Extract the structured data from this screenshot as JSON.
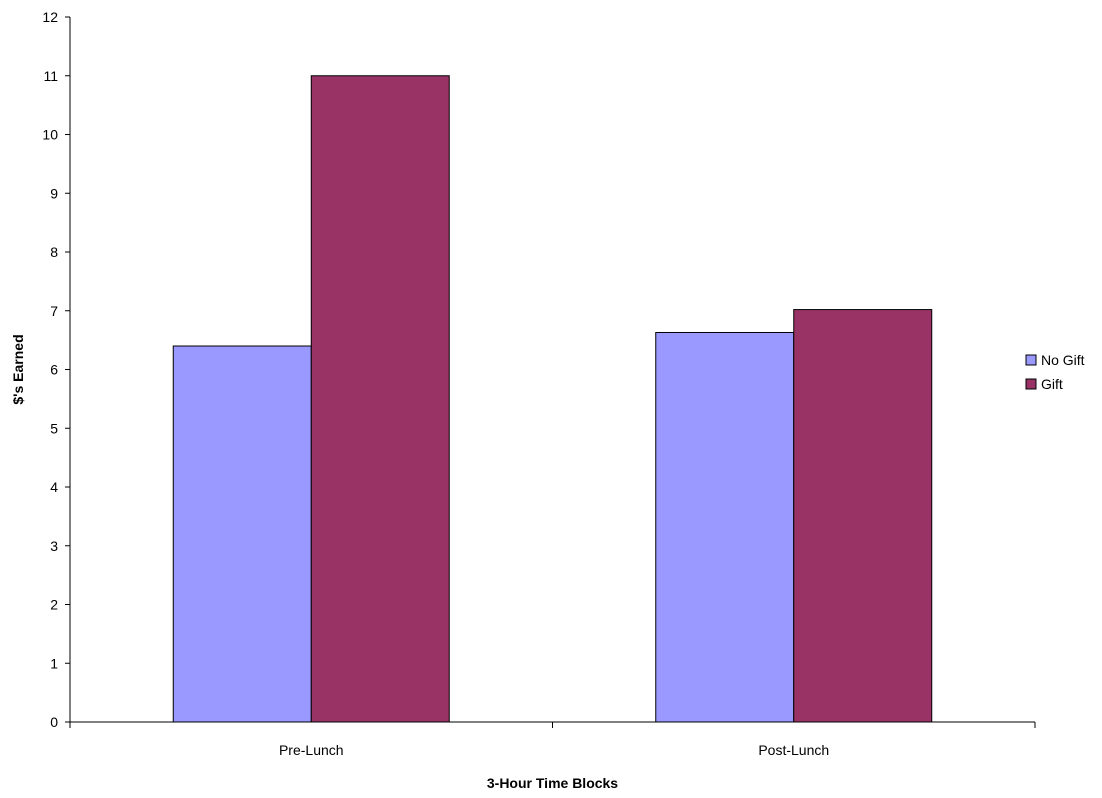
{
  "chart_data": {
    "type": "bar",
    "title": "",
    "xlabel": "3-Hour Time Blocks",
    "ylabel": "$'s Earned",
    "categories": [
      "Pre-Lunch",
      "Post-Lunch"
    ],
    "series": [
      {
        "name": "No Gift",
        "values": [
          6.4,
          6.63
        ],
        "color": "#9999ff"
      },
      {
        "name": "Gift",
        "values": [
          11.0,
          7.02
        ],
        "color": "#993366"
      }
    ],
    "ylim": [
      0,
      12
    ],
    "yticks": [
      0,
      1,
      2,
      3,
      4,
      5,
      6,
      7,
      8,
      9,
      10,
      11,
      12
    ],
    "grid": false,
    "legend_position": "right"
  }
}
